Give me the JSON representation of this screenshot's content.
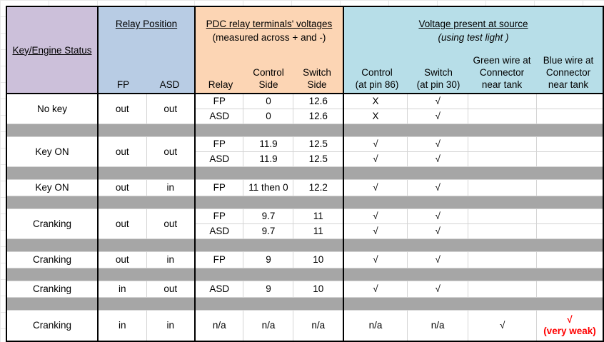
{
  "colors": {
    "status_header": "#CCC0DA",
    "relay_header": "#B8CCE4",
    "pdc_header": "#FCD5B4",
    "source_header": "#B7DEE8",
    "separator_gray": "#A6A6A6",
    "weak_signal_red": "#FF0000"
  },
  "header": {
    "key_engine_status": "Key/Engine Status",
    "relay_position": {
      "title": "Relay Position",
      "fp": "FP",
      "asd": "ASD"
    },
    "pdc_voltages": {
      "title": "PDC relay terminals' voltages",
      "subtitle": "(measured across + and -)",
      "relay": "Relay",
      "control_side": "Control\nSide",
      "switch_side": "Switch\nSide"
    },
    "voltage_source": {
      "title": "Voltage present at source",
      "subtitle": "(using test light )",
      "control": "Control\n(at pin 86)",
      "switch": "Switch\n(at pin 30)",
      "green_wire": "Green wire at\nConnector\nnear tank",
      "blue_wire": "Blue wire at\nConnector\nnear tank"
    }
  },
  "rows": [
    {
      "type": "data",
      "status": "No key",
      "fp": "out",
      "asd": "out",
      "sub": [
        {
          "relay": "FP",
          "control_side": "0",
          "switch_side": "12.6",
          "control": "X",
          "switch": "√",
          "green": "",
          "blue": ""
        },
        {
          "relay": "ASD",
          "control_side": "0",
          "switch_side": "12.6",
          "control": "X",
          "switch": "√",
          "green": "",
          "blue": ""
        }
      ]
    },
    {
      "type": "separator"
    },
    {
      "type": "data",
      "status": "Key ON",
      "fp": "out",
      "asd": "out",
      "sub": [
        {
          "relay": "FP",
          "control_side": "11.9",
          "switch_side": "12.5",
          "control": "√",
          "switch": "√",
          "green": "",
          "blue": ""
        },
        {
          "relay": "ASD",
          "control_side": "11.9",
          "switch_side": "12.5",
          "control": "√",
          "switch": "√",
          "green": "",
          "blue": ""
        }
      ]
    },
    {
      "type": "separator"
    },
    {
      "type": "data",
      "status": "Key ON",
      "fp": "out",
      "asd": "in",
      "sub": [
        {
          "relay": "FP",
          "control_side": "11 then 0",
          "switch_side": "12.2",
          "control": "√",
          "switch": "√",
          "green": "",
          "blue": ""
        }
      ]
    },
    {
      "type": "separator"
    },
    {
      "type": "data",
      "status": "Cranking",
      "fp": "out",
      "asd": "out",
      "sub": [
        {
          "relay": "FP",
          "control_side": "9.7",
          "switch_side": "11",
          "control": "√",
          "switch": "√",
          "green": "",
          "blue": ""
        },
        {
          "relay": "ASD",
          "control_side": "9.7",
          "switch_side": "11",
          "control": "√",
          "switch": "√",
          "green": "",
          "blue": ""
        }
      ]
    },
    {
      "type": "separator"
    },
    {
      "type": "data",
      "status": "Cranking",
      "fp": "out",
      "asd": "in",
      "sub": [
        {
          "relay": "FP",
          "control_side": "9",
          "switch_side": "10",
          "control": "√",
          "switch": "√",
          "green": "",
          "blue": ""
        }
      ]
    },
    {
      "type": "separator"
    },
    {
      "type": "data",
      "status": "Cranking",
      "fp": "in",
      "asd": "out",
      "sub": [
        {
          "relay": "ASD",
          "control_side": "9",
          "switch_side": "10",
          "control": "√",
          "switch": "√",
          "green": "",
          "blue": ""
        }
      ]
    },
    {
      "type": "separator"
    },
    {
      "type": "data",
      "status": "Cranking",
      "fp": "in",
      "asd": "in",
      "tall": true,
      "sub": [
        {
          "relay": "n/a",
          "control_side": "n/a",
          "switch_side": "n/a",
          "control": "n/a",
          "switch": "n/a",
          "green": "√",
          "blue": "√\n(very weak)",
          "blue_highlight": true
        }
      ]
    }
  ]
}
